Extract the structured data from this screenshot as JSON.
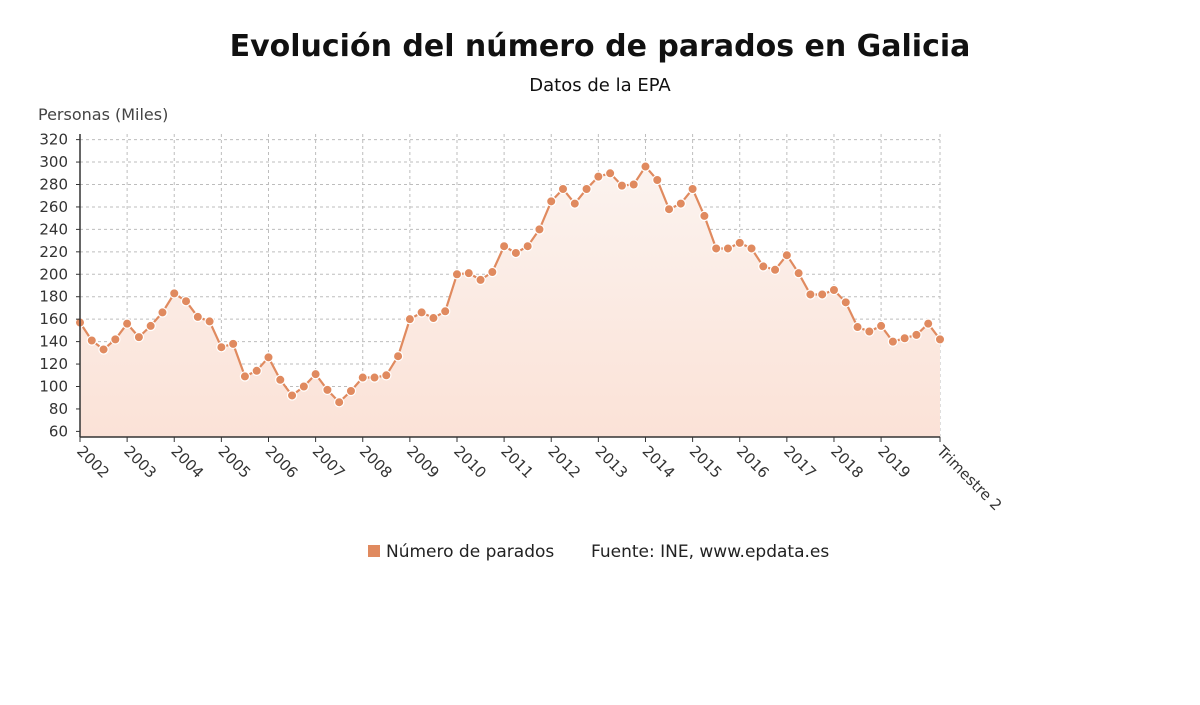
{
  "chart_data": {
    "type": "line",
    "title": "Evolución del número de parados en Galicia",
    "subtitle": "Datos de la EPA",
    "ylabel": "Personas (Miles)",
    "ylim": [
      55,
      325
    ],
    "yticks": [
      60,
      80,
      100,
      120,
      140,
      160,
      180,
      200,
      220,
      240,
      260,
      280,
      300,
      320
    ],
    "xtick_labels": [
      "2002",
      "2003",
      "2004",
      "2005",
      "2006",
      "2007",
      "2008",
      "2009",
      "2010",
      "2011",
      "2012",
      "2013",
      "2014",
      "2015",
      "2016",
      "2017",
      "2018",
      "2019",
      "Trimestre 2"
    ],
    "grid": true,
    "legend_position": "bottom",
    "series": [
      {
        "name": "Número de parados",
        "color": "#e08a5f",
        "values": [
          157,
          141,
          133,
          142,
          156,
          144,
          154,
          166,
          183,
          176,
          162,
          158,
          135,
          138,
          109,
          114,
          126,
          106,
          92,
          100,
          111,
          97,
          86,
          96,
          108,
          108,
          110,
          127,
          160,
          166,
          161,
          167,
          200,
          201,
          195,
          202,
          225,
          219,
          225,
          240,
          265,
          276,
          263,
          276,
          287,
          290,
          279,
          280,
          296,
          284,
          258,
          263,
          276,
          252,
          223,
          223,
          228,
          223,
          207,
          204,
          217,
          201,
          182,
          182,
          186,
          175,
          153,
          149,
          154,
          140,
          143,
          146,
          156,
          142
        ]
      }
    ],
    "source": "Fuente: INE, www.epdata.es"
  }
}
